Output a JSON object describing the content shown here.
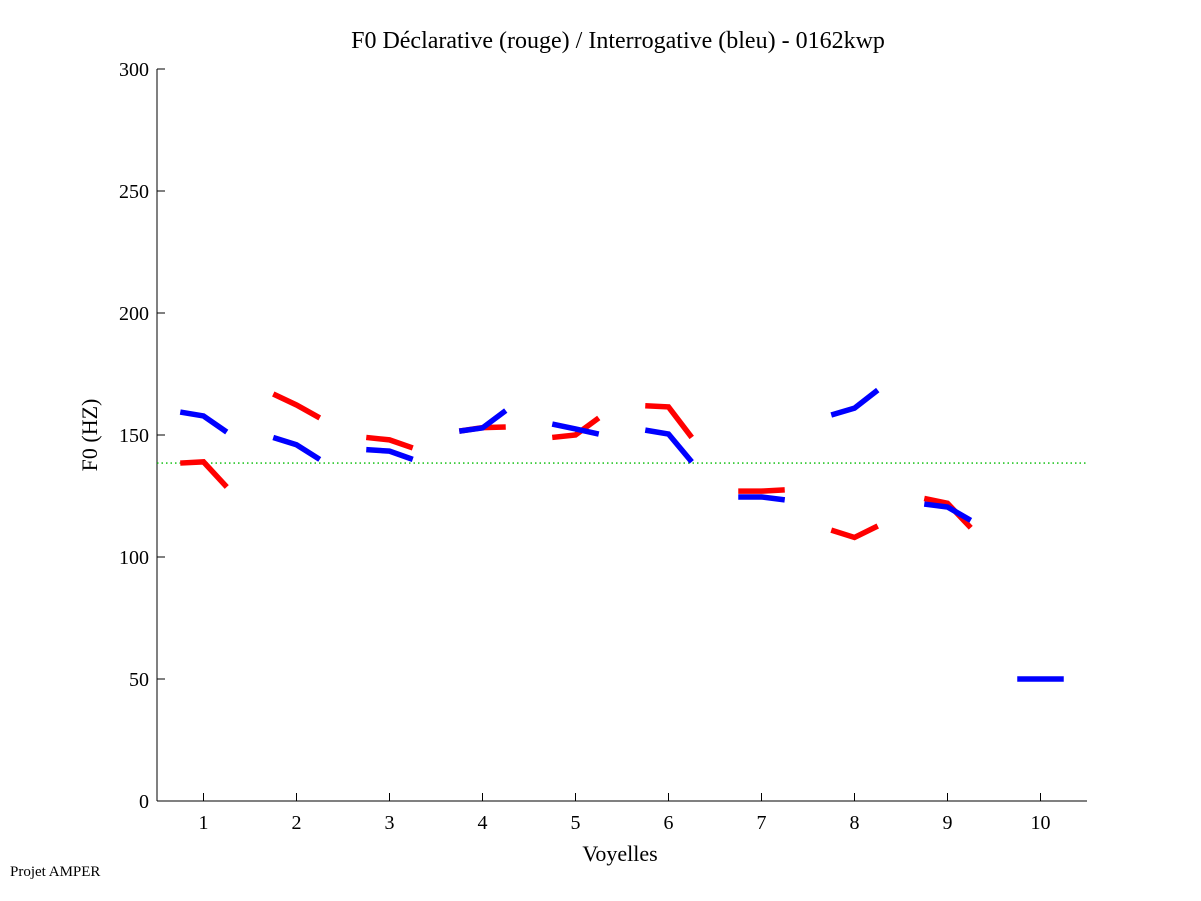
{
  "chart_data": {
    "type": "line",
    "title": "F0 Déclarative (rouge) / Interrogative (bleu) - 0162kwp",
    "xlabel": "Voyelles",
    "ylabel": "F0 (HZ)",
    "xlim": [
      0.5,
      10.5
    ],
    "ylim": [
      0,
      300
    ],
    "xticks": [
      "1",
      "2",
      "3",
      "4",
      "5",
      "6",
      "7",
      "8",
      "9",
      "10"
    ],
    "yticks": [
      "0",
      "50",
      "100",
      "150",
      "200",
      "250",
      "300"
    ],
    "reference_line": {
      "value": 138.5,
      "color": "#00bb00",
      "style": "dotted"
    },
    "offsets": [
      -0.25,
      0,
      0.25
    ],
    "series": [
      {
        "name": "Déclarative",
        "color": "#ff0000",
        "segments": [
          {
            "vowel": 1,
            "values": [
              138.5,
              139,
              128.7
            ]
          },
          {
            "vowel": 2,
            "values": [
              166.8,
              162.3,
              157
            ]
          },
          {
            "vowel": 3,
            "values": [
              149,
              148,
              144.7
            ]
          },
          {
            "vowel": 4,
            "values": [
              151.6,
              153,
              153.3
            ]
          },
          {
            "vowel": 5,
            "values": [
              149,
              150,
              157
            ]
          },
          {
            "vowel": 6,
            "values": [
              162,
              161.5,
              149
            ]
          },
          {
            "vowel": 7,
            "values": [
              127,
              127,
              127.5
            ]
          },
          {
            "vowel": 8,
            "values": [
              111,
              108,
              112.7
            ]
          },
          {
            "vowel": 9,
            "values": [
              124,
              122,
              112
            ]
          }
        ]
      },
      {
        "name": "Interrogative",
        "color": "#0000ff",
        "segments": [
          {
            "vowel": 1,
            "values": [
              159.4,
              157.8,
              151.2
            ]
          },
          {
            "vowel": 2,
            "values": [
              149,
              146,
              140
            ]
          },
          {
            "vowel": 3,
            "values": [
              144,
              143.4,
              140
            ]
          },
          {
            "vowel": 4,
            "values": [
              151.6,
              152.9,
              160
            ]
          },
          {
            "vowel": 5,
            "values": [
              154.5,
              152.5,
              150.4
            ]
          },
          {
            "vowel": 6,
            "values": [
              152,
              150.4,
              139
            ]
          },
          {
            "vowel": 7,
            "values": [
              124.6,
              124.6,
              123.4
            ]
          },
          {
            "vowel": 8,
            "values": [
              158.2,
              161,
              168.4
            ]
          },
          {
            "vowel": 9,
            "values": [
              121.7,
              120.5,
              115
            ]
          },
          {
            "vowel": 10,
            "values": [
              50,
              50,
              50
            ]
          }
        ]
      }
    ]
  },
  "footer": "Projet AMPER"
}
